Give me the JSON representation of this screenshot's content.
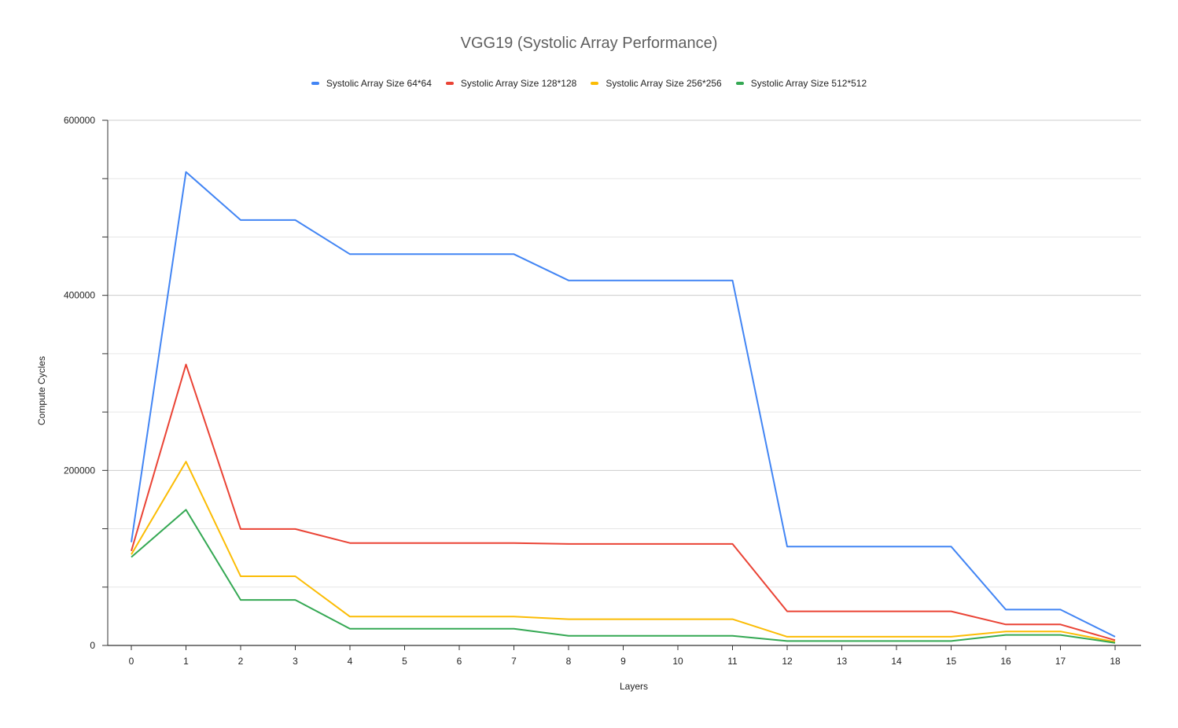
{
  "chart_data": {
    "type": "line",
    "title": "VGG19 (Systolic Array Performance)",
    "xlabel": "Layers",
    "ylabel": "Compute Cycles",
    "x": [
      0,
      1,
      2,
      3,
      4,
      5,
      6,
      7,
      8,
      9,
      10,
      11,
      12,
      13,
      14,
      15,
      16,
      17,
      18
    ],
    "ylim": [
      0,
      600000
    ],
    "yticks": [
      "0",
      "200000",
      "400000",
      "600000"
    ],
    "grid": true,
    "legend_position": "top",
    "series": [
      {
        "name": "Systolic Array Size 64*64",
        "color": "#4285f4",
        "values": [
          118000,
          541000,
          486000,
          486000,
          447000,
          447000,
          447000,
          447000,
          417000,
          417000,
          417000,
          417000,
          113000,
          113000,
          113000,
          113000,
          41000,
          41000,
          10000
        ]
      },
      {
        "name": "Systolic Array Size 128*128",
        "color": "#ea4335",
        "values": [
          108000,
          321000,
          133000,
          133000,
          117000,
          117000,
          117000,
          117000,
          116000,
          116000,
          116000,
          116000,
          39000,
          39000,
          39000,
          39000,
          24000,
          24000,
          6000
        ]
      },
      {
        "name": "Systolic Array Size 256*256",
        "color": "#fbbc04",
        "values": [
          104000,
          210000,
          79000,
          79000,
          33000,
          33000,
          33000,
          33000,
          30000,
          30000,
          30000,
          30000,
          10000,
          10000,
          10000,
          10000,
          16000,
          16000,
          4000
        ]
      },
      {
        "name": "Systolic Array Size 512*512",
        "color": "#34a853",
        "values": [
          101000,
          155000,
          52000,
          52000,
          19000,
          19000,
          19000,
          19000,
          11000,
          11000,
          11000,
          11000,
          5000,
          5000,
          5000,
          5000,
          12000,
          12000,
          3000
        ]
      }
    ]
  }
}
